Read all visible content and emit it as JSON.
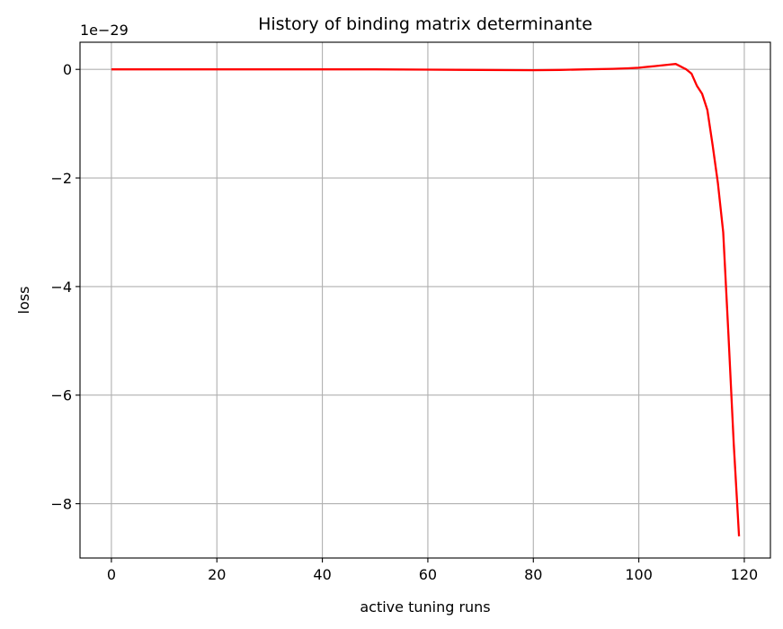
{
  "chart_data": {
    "type": "line",
    "title": "History of binding matrix determinante",
    "xlabel": "active tuning runs",
    "ylabel": "loss",
    "y_offset_label": "1e−29",
    "xlim": [
      -5.95,
      124.95
    ],
    "ylim": [
      -9.0,
      0.5
    ],
    "grid": true,
    "xticks": [
      0,
      20,
      40,
      60,
      80,
      100,
      120
    ],
    "xtick_labels": [
      "0",
      "20",
      "40",
      "60",
      "80",
      "100",
      "120"
    ],
    "yticks": [
      0,
      -2,
      -4,
      -6,
      -8
    ],
    "ytick_labels": [
      "0",
      "−2",
      "−4",
      "−6",
      "−8"
    ],
    "series": [
      {
        "color": "#ff0000",
        "x": [
          0,
          10,
          20,
          30,
          40,
          50,
          60,
          70,
          80,
          85,
          90,
          95,
          98,
          100,
          101,
          102,
          103,
          104,
          105,
          106,
          107,
          108,
          109,
          110,
          111,
          112,
          113,
          114,
          115,
          116,
          117,
          118,
          119
        ],
        "y": [
          0,
          0,
          0,
          0,
          0,
          0,
          -0.005,
          -0.01,
          -0.015,
          -0.01,
          0,
          0.01,
          0.02,
          0.03,
          0.04,
          0.05,
          0.06,
          0.07,
          0.08,
          0.09,
          0.1,
          0.05,
          0.0,
          -0.08,
          -0.3,
          -0.45,
          -0.75,
          -1.4,
          -2.1,
          -3.0,
          -4.9,
          -6.9,
          -8.6
        ]
      }
    ]
  }
}
